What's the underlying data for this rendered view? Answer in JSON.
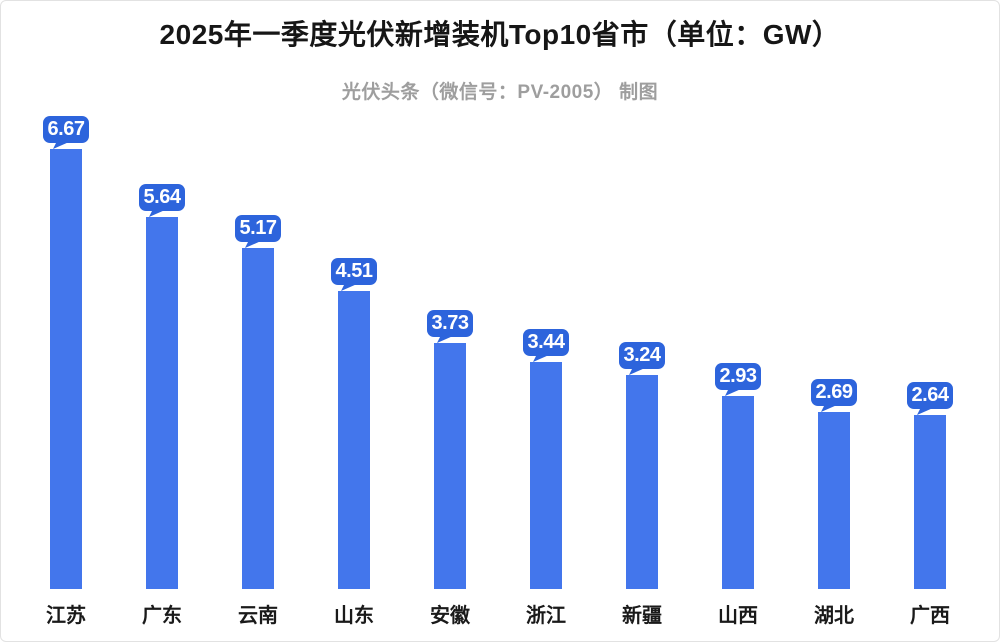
{
  "header": {
    "title": "2025年一季度光伏新增装机Top10省市（单位：GW）",
    "subtitle": "光伏头条（微信号：PV-2005） 制图"
  },
  "chart_data": {
    "type": "bar",
    "title": "2025年一季度光伏新增装机Top10省市",
    "unit": "GW",
    "source_note": "光伏头条（微信号：PV-2005） 制图",
    "categories": [
      "江苏",
      "广东",
      "云南",
      "山东",
      "安徽",
      "浙江",
      "新疆",
      "山西",
      "湖北",
      "广西"
    ],
    "values": [
      6.67,
      5.64,
      5.17,
      4.51,
      3.73,
      3.44,
      3.24,
      2.93,
      2.69,
      2.64
    ],
    "value_labels": [
      "6.67",
      "5.64",
      "5.17",
      "4.51",
      "3.73",
      "3.44",
      "3.24",
      "2.93",
      "2.69",
      "2.64"
    ],
    "ylim": [
      0,
      7
    ],
    "grid": "off",
    "legend": "none",
    "colors": {
      "bar": "#4376ec",
      "bubble": "#2d64dc",
      "bubble_text": "#ffffff",
      "title_text": "#161616",
      "subtitle_text": "#9e9e9e",
      "category_text": "#1a1a1a",
      "background": "#ffffff"
    }
  }
}
